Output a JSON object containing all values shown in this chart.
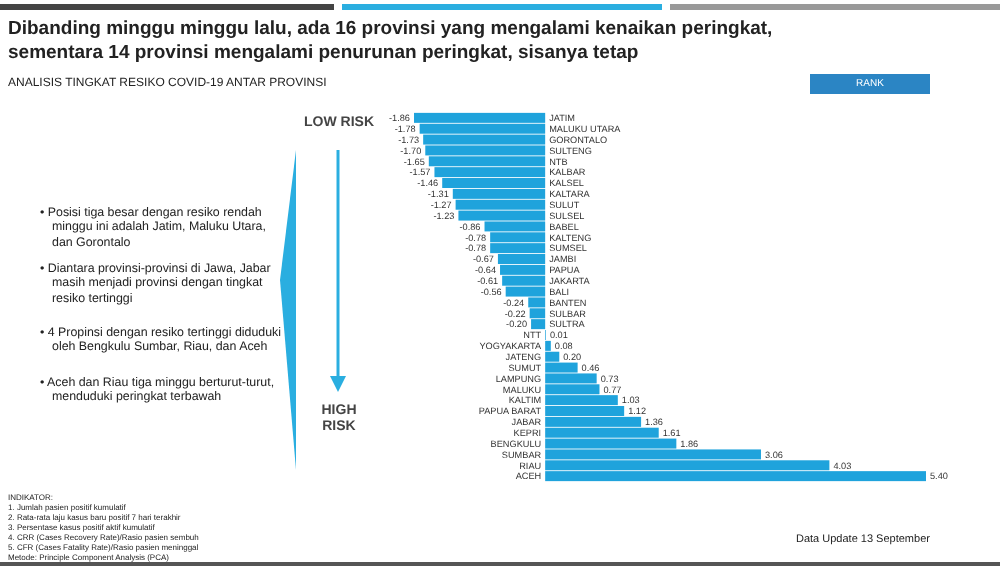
{
  "chart_data": {
    "type": "bar",
    "orientation": "horizontal",
    "title": "Dibanding minggu minggu lalu, ada 16 provinsi yang mengalami kenaikan peringkat, sementara 14 provinsi mengalami penurunan peringkat, sisanya tetap",
    "subtitle": "ANALISIS TINGKAT RESIKO COVID-19 ANTAR PROVINSI",
    "categories": [
      "JATIM",
      "MALUKU UTARA",
      "GORONTALO",
      "SULTENG",
      "NTB",
      "KALBAR",
      "KALSEL",
      "KALTARA",
      "SULUT",
      "SULSEL",
      "BABEL",
      "KALTENG",
      "SUMSEL",
      "JAMBI",
      "PAPUA",
      "JAKARTA",
      "BALI",
      "BANTEN",
      "SULBAR",
      "SULTRA",
      "NTT",
      "YOGYAKARTA",
      "JATENG",
      "SUMUT",
      "LAMPUNG",
      "MALUKU",
      "KALTIM",
      "PAPUA BARAT",
      "JABAR",
      "KEPRI",
      "BENGKULU",
      "SUMBAR",
      "RIAU",
      "ACEH"
    ],
    "values": [
      -1.86,
      -1.78,
      -1.73,
      -1.7,
      -1.65,
      -1.57,
      -1.46,
      -1.31,
      -1.27,
      -1.23,
      -0.86,
      -0.78,
      -0.78,
      -0.67,
      -0.64,
      -0.61,
      -0.56,
      -0.24,
      -0.22,
      -0.2,
      0.01,
      0.08,
      0.2,
      0.46,
      0.73,
      0.77,
      1.03,
      1.12,
      1.36,
      1.61,
      1.86,
      3.06,
      4.03,
      5.4
    ],
    "color": "#1fa3dc",
    "value_labels": [
      "-1.86",
      "-1.78",
      "-1.73",
      "-1.70",
      "-1.65",
      "-1.57",
      "-1.46",
      "-1.31",
      "-1.27",
      "-1.23",
      "-0.86",
      "-0.78",
      "-0.78",
      "-0.67",
      "-0.64",
      "-0.61",
      "-0.56",
      "-0.24",
      "-0.22",
      "-0.20",
      "0.01",
      "0.08",
      "0.20",
      "0.46",
      "0.73",
      "0.77",
      "1.03",
      "1.12",
      "1.36",
      "1.61",
      "1.86",
      "3.06",
      "4.03",
      "5.40"
    ],
    "annotations": [
      "• Posisi tiga besar dengan resiko rendah minggu ini adalah Jatim, Maluku Utara, dan Gorontalo",
      "• Diantara provinsi-provinsi di Jawa, Jabar masih menjadi provinsi dengan tingkat resiko tertinggi",
      "• 4 Propinsi dengan resiko tertinggi diduduki oleh Bengkulu Sumbar, Riau, dan Aceh",
      "• Aceh dan Riau tiga minggu berturut-turut, menduduki peringkat terbawah",
      "LOW RISK",
      "HIGH RISK",
      "INDIKATOR:",
      "1.  Jumlah pasien positif kumulatif",
      "2.  Rata-rata laju kasus baru positif 7 hari terakhir",
      "3.  Persentase kasus positif aktif kumulatif",
      "4.  CRR (Cases Recovery Rate)/Rasio pasien sembuh",
      "5.  CFR (Cases Fatality Rate)/Rasio pasien meninggal",
      "Metode: Principle Component Analysis (PCA)",
      "RANK",
      "Data Update 13 September"
    ]
  }
}
